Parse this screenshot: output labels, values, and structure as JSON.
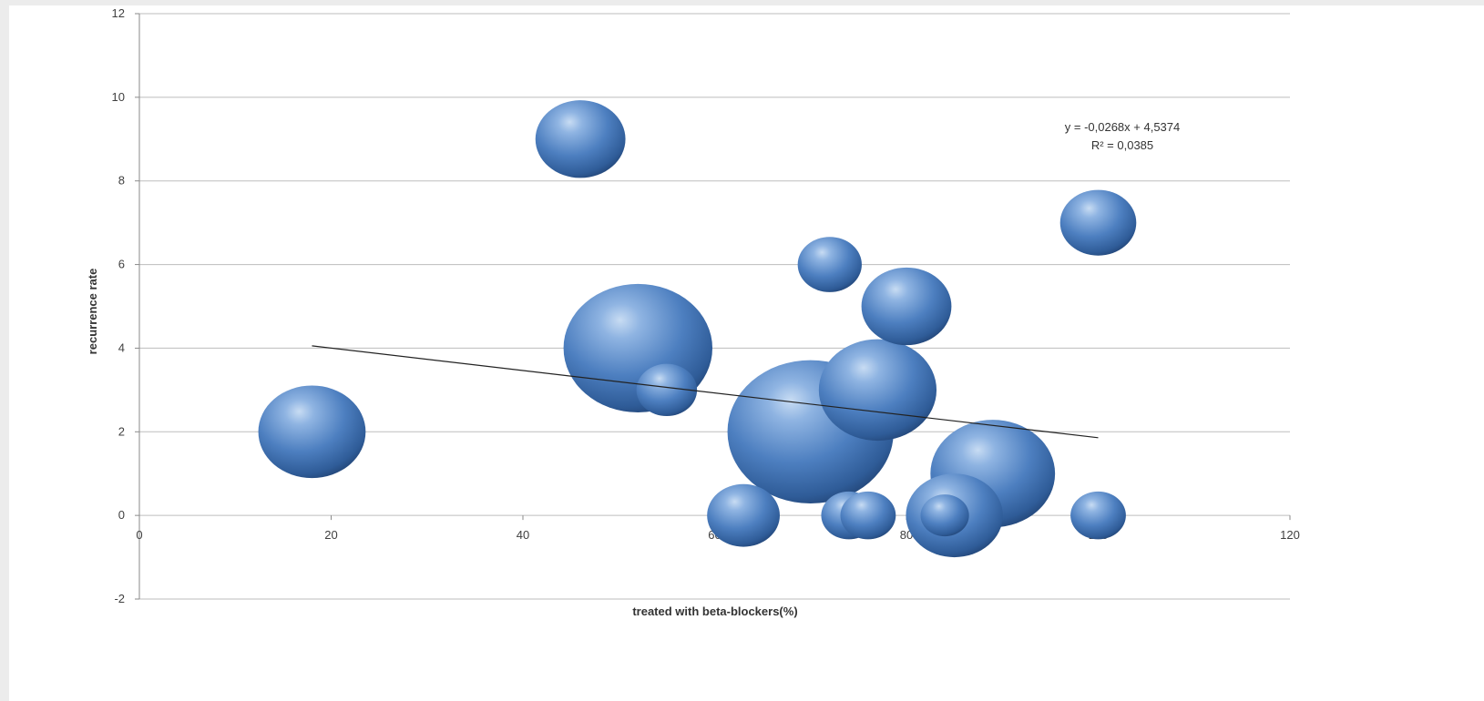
{
  "chart_data": {
    "type": "bubble",
    "title": "",
    "xlabel": "treated with beta-blockers(%)",
    "ylabel": "recurrence rate",
    "xlim": [
      0,
      120
    ],
    "ylim": [
      -2,
      12
    ],
    "xticks": [
      0,
      20,
      40,
      60,
      80,
      100,
      120
    ],
    "yticks": [
      -2,
      0,
      2,
      4,
      6,
      8,
      10,
      12
    ],
    "grid": "horizontal",
    "legend": "none",
    "bubble_color": "#4a7ebb",
    "points": [
      {
        "x": 18,
        "y": 2,
        "size": 0.62
      },
      {
        "x": 46,
        "y": 9,
        "size": 0.52
      },
      {
        "x": 55,
        "y": 3,
        "size": 0.35
      },
      {
        "x": 52,
        "y": 4,
        "size": 0.86
      },
      {
        "x": 63,
        "y": 0,
        "size": 0.42
      },
      {
        "x": 72,
        "y": 6,
        "size": 0.37
      },
      {
        "x": 77,
        "y": 3,
        "size": 0.68
      },
      {
        "x": 80,
        "y": 5,
        "size": 0.52
      },
      {
        "x": 70,
        "y": 2,
        "size": 0.96
      },
      {
        "x": 74,
        "y": 0,
        "size": 0.32
      },
      {
        "x": 76,
        "y": 0,
        "size": 0.32
      },
      {
        "x": 85,
        "y": 0,
        "size": 0.56
      },
      {
        "x": 84,
        "y": 0,
        "size": 0.28
      },
      {
        "x": 89,
        "y": 1,
        "size": 0.72
      },
      {
        "x": 100,
        "y": 7,
        "size": 0.44
      },
      {
        "x": 100,
        "y": 0,
        "size": 0.32
      }
    ],
    "trendline": {
      "slope": -0.0268,
      "intercept": 4.5374,
      "x_range": [
        18,
        100
      ],
      "equation_label": "y = -0,0268x + 4,5374",
      "r2_label": "R² = 0,0385"
    }
  }
}
